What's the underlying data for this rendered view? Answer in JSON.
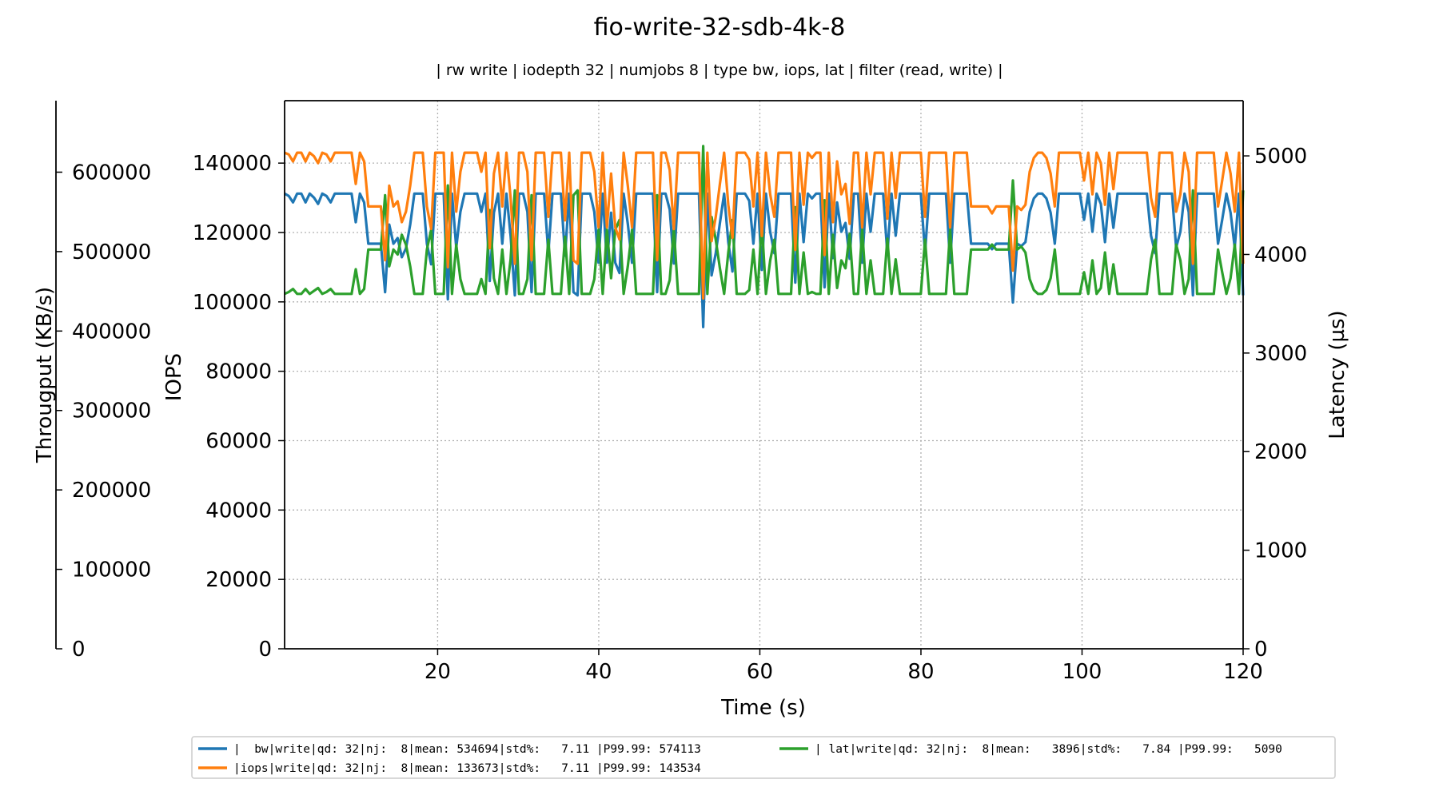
{
  "chart_data": {
    "type": "line",
    "title": "fio-write-32-sdb-4k-8",
    "subtitle": "| rw write | iodepth 32 | numjobs 8 | type bw, iops, lat | filter (read, write) |",
    "xlabel": "Time (s)",
    "xlim": [
      1,
      120
    ],
    "x_ticks": [
      20,
      40,
      60,
      80,
      100,
      120
    ],
    "grid": true,
    "axes": {
      "iops": {
        "label": "IOPS",
        "lim": [
          0,
          158000
        ],
        "ticks": [
          0,
          20000,
          40000,
          60000,
          80000,
          100000,
          120000,
          140000
        ]
      },
      "throughput": {
        "label": "Througput (KB/s)",
        "lim": [
          0,
          690000
        ],
        "ticks": [
          0,
          100000,
          200000,
          300000,
          400000,
          500000,
          600000
        ]
      },
      "latency": {
        "label": "Latency (µs)",
        "lim": [
          0,
          5560
        ],
        "ticks": [
          0,
          1000,
          2000,
          3000,
          4000,
          5000
        ]
      }
    },
    "series": [
      {
        "name": "|  bw|write|qd: 32|nj:  8|mean: 534694|std%:   7.11 |P99.99: 574113",
        "axis": "throughput",
        "color": "#1f77b4",
        "values": [
          573000,
          570000,
          562000,
          573000,
          573000,
          562000,
          573000,
          568000,
          560000,
          573000,
          570000,
          562000,
          573000,
          573000,
          573000,
          573000,
          573000,
          537000,
          573000,
          562000,
          510000,
          510000,
          510000,
          510000,
          449000,
          534000,
          510000,
          517000,
          493000,
          504000,
          534000,
          573000,
          573000,
          573000,
          510000,
          484000,
          573000,
          573000,
          573000,
          440000,
          573000,
          505000,
          550000,
          573000,
          573000,
          573000,
          573000,
          550000,
          573000,
          463000,
          549000,
          573000,
          510000,
          573000,
          520000,
          445000,
          573000,
          573000,
          550000,
          449000,
          573000,
          573000,
          573000,
          498000,
          573000,
          573000,
          573000,
          495000,
          573000,
          449000,
          445000,
          573000,
          573000,
          573000,
          550000,
          486000,
          573000,
          486000,
          549000,
          486000,
          473000,
          573000,
          535000,
          486000,
          573000,
          573000,
          573000,
          573000,
          573000,
          449000,
          573000,
          573000,
          553000,
          485000,
          573000,
          573000,
          573000,
          573000,
          573000,
          573000,
          405000,
          573000,
          470000,
          498000,
          536000,
          573000,
          512000,
          475000,
          573000,
          573000,
          573000,
          564000,
          510000,
          573000,
          477000,
          573000,
          525000,
          498000,
          573000,
          573000,
          573000,
          573000,
          461000,
          573000,
          512000,
          573000,
          567000,
          573000,
          573000,
          455000,
          573000,
          492000,
          562000,
          525000,
          536000,
          491000,
          573000,
          573000,
          486000,
          573000,
          525000,
          573000,
          573000,
          573000,
          497000,
          573000,
          520000,
          573000,
          573000,
          573000,
          573000,
          573000,
          573000,
          498000,
          573000,
          573000,
          573000,
          573000,
          573000,
          486000,
          573000,
          573000,
          573000,
          573000,
          510000,
          510000,
          510000,
          510000,
          510000,
          503000,
          510000,
          510000,
          510000,
          510000,
          436000,
          510000,
          507000,
          512000,
          550000,
          567000,
          573000,
          573000,
          567000,
          549000,
          510000,
          573000,
          573000,
          573000,
          573000,
          573000,
          573000,
          540000,
          573000,
          525000,
          573000,
          560000,
          512000,
          573000,
          530000,
          573000,
          573000,
          573000,
          573000,
          573000,
          573000,
          573000,
          573000,
          520000,
          498000,
          573000,
          573000,
          573000,
          573000,
          505000,
          525000,
          573000,
          550000,
          445000,
          573000,
          573000,
          573000,
          573000,
          573000,
          510000,
          540000,
          573000,
          549000,
          505000,
          573000,
          445000
        ]
      },
      {
        "name": "|iops|write|qd: 32|nj:  8|mean: 133673|std%:   7.11 |P99.99: 143534",
        "axis": "iops",
        "color": "#ff7f0e",
        "values": [
          143000,
          142500,
          140500,
          143000,
          143000,
          140500,
          143000,
          142000,
          140000,
          143000,
          142500,
          140500,
          143000,
          143000,
          143000,
          143000,
          143000,
          134000,
          143000,
          140500,
          127500,
          127500,
          127500,
          127500,
          112000,
          133500,
          127500,
          129000,
          123000,
          126000,
          133500,
          143000,
          143000,
          143000,
          127500,
          121000,
          143000,
          143000,
          143000,
          110000,
          143000,
          126000,
          137500,
          143000,
          143000,
          143000,
          143000,
          137500,
          143000,
          115500,
          137000,
          143000,
          127500,
          143000,
          130000,
          111000,
          143000,
          143000,
          137500,
          112000,
          143000,
          143000,
          143000,
          124500,
          143000,
          143000,
          143000,
          123500,
          143000,
          112000,
          111000,
          143000,
          143000,
          143000,
          137500,
          121500,
          143000,
          121500,
          137000,
          121500,
          118000,
          143000,
          133500,
          121500,
          143000,
          143000,
          143000,
          143000,
          143000,
          112000,
          143000,
          143000,
          138000,
          121000,
          143000,
          143000,
          143000,
          143000,
          143000,
          143000,
          101000,
          143000,
          117500,
          124500,
          134000,
          143000,
          128000,
          118500,
          143000,
          143000,
          143000,
          141000,
          127500,
          143000,
          119000,
          143000,
          131000,
          124500,
          143000,
          143000,
          143000,
          143000,
          115000,
          143000,
          128000,
          143000,
          141500,
          143000,
          143000,
          113500,
          143000,
          123000,
          140500,
          131000,
          134000,
          122500,
          143000,
          143000,
          121500,
          143000,
          131000,
          143000,
          143000,
          143000,
          124000,
          143000,
          130000,
          143000,
          143000,
          143000,
          143000,
          143000,
          143000,
          124500,
          143000,
          143000,
          143000,
          143000,
          143000,
          121500,
          143000,
          143000,
          143000,
          143000,
          127500,
          127500,
          127500,
          127500,
          127500,
          125500,
          127500,
          127500,
          127500,
          127500,
          109000,
          127500,
          126500,
          128000,
          137500,
          141500,
          143000,
          143000,
          141500,
          137000,
          127500,
          143000,
          143000,
          143000,
          143000,
          143000,
          143000,
          135000,
          143000,
          131000,
          143000,
          140000,
          128000,
          143000,
          132500,
          143000,
          143000,
          143000,
          143000,
          143000,
          143000,
          143000,
          143000,
          130000,
          124500,
          143000,
          143000,
          143000,
          143000,
          126000,
          131000,
          143000,
          137500,
          111000,
          143000,
          143000,
          143000,
          143000,
          143000,
          127500,
          135000,
          143000,
          137000,
          126000,
          143000,
          111000
        ]
      },
      {
        "name": "| lat|write|qd: 32|nj:  8|mean:   3896|std%:   7.84 |P99.99:   5090",
        "axis": "latency",
        "color": "#2ca02c",
        "values": [
          3600,
          3620,
          3650,
          3600,
          3600,
          3650,
          3600,
          3630,
          3660,
          3600,
          3620,
          3650,
          3600,
          3600,
          3600,
          3600,
          3600,
          3850,
          3600,
          3650,
          4050,
          4050,
          4050,
          4050,
          4600,
          3880,
          4050,
          4000,
          4200,
          4100,
          3880,
          3600,
          3600,
          3600,
          4050,
          4250,
          3600,
          3600,
          3600,
          4700,
          3600,
          4100,
          3750,
          3600,
          3600,
          3600,
          3600,
          3750,
          3600,
          4450,
          3760,
          3600,
          4050,
          3600,
          3950,
          4650,
          3600,
          3600,
          3750,
          4600,
          3600,
          3600,
          3600,
          4150,
          3600,
          3600,
          3600,
          4180,
          3600,
          4600,
          4650,
          3600,
          3600,
          3600,
          3750,
          4250,
          3600,
          4250,
          3760,
          4250,
          4350,
          3600,
          3880,
          4250,
          3600,
          3600,
          3600,
          3600,
          3600,
          4600,
          3600,
          3600,
          3740,
          4260,
          3600,
          3600,
          3600,
          3600,
          3600,
          3600,
          5100,
          3600,
          4380,
          4150,
          3860,
          3600,
          4020,
          4350,
          3600,
          3600,
          3600,
          3640,
          4050,
          3600,
          4330,
          3600,
          3940,
          4150,
          3600,
          3600,
          3600,
          3600,
          4480,
          3600,
          4020,
          3600,
          3620,
          3600,
          3600,
          4550,
          3600,
          4200,
          3660,
          3940,
          3860,
          4210,
          3600,
          3600,
          4250,
          3600,
          3940,
          3600,
          3600,
          3600,
          4160,
          3600,
          3950,
          3600,
          3600,
          3600,
          3600,
          3600,
          3600,
          4150,
          3600,
          3600,
          3600,
          3600,
          3600,
          4250,
          3600,
          3600,
          3600,
          3600,
          4050,
          4050,
          4050,
          4050,
          4050,
          4100,
          4050,
          4050,
          4050,
          4050,
          4750,
          4050,
          4080,
          4020,
          3750,
          3640,
          3600,
          3600,
          3640,
          3760,
          4050,
          3600,
          3600,
          3600,
          3600,
          3600,
          3600,
          3820,
          3600,
          3940,
          3600,
          3660,
          4020,
          3600,
          3900,
          3600,
          3600,
          3600,
          3600,
          3600,
          3600,
          3600,
          3600,
          3950,
          4150,
          3600,
          3600,
          3600,
          3600,
          4100,
          3940,
          3600,
          3750,
          4650,
          3600,
          3600,
          3600,
          3600,
          3600,
          4050,
          3820,
          3600,
          3760,
          4100,
          3600,
          4650
        ]
      }
    ],
    "legend": {
      "placement": "bottom-center",
      "columns": 2
    }
  }
}
